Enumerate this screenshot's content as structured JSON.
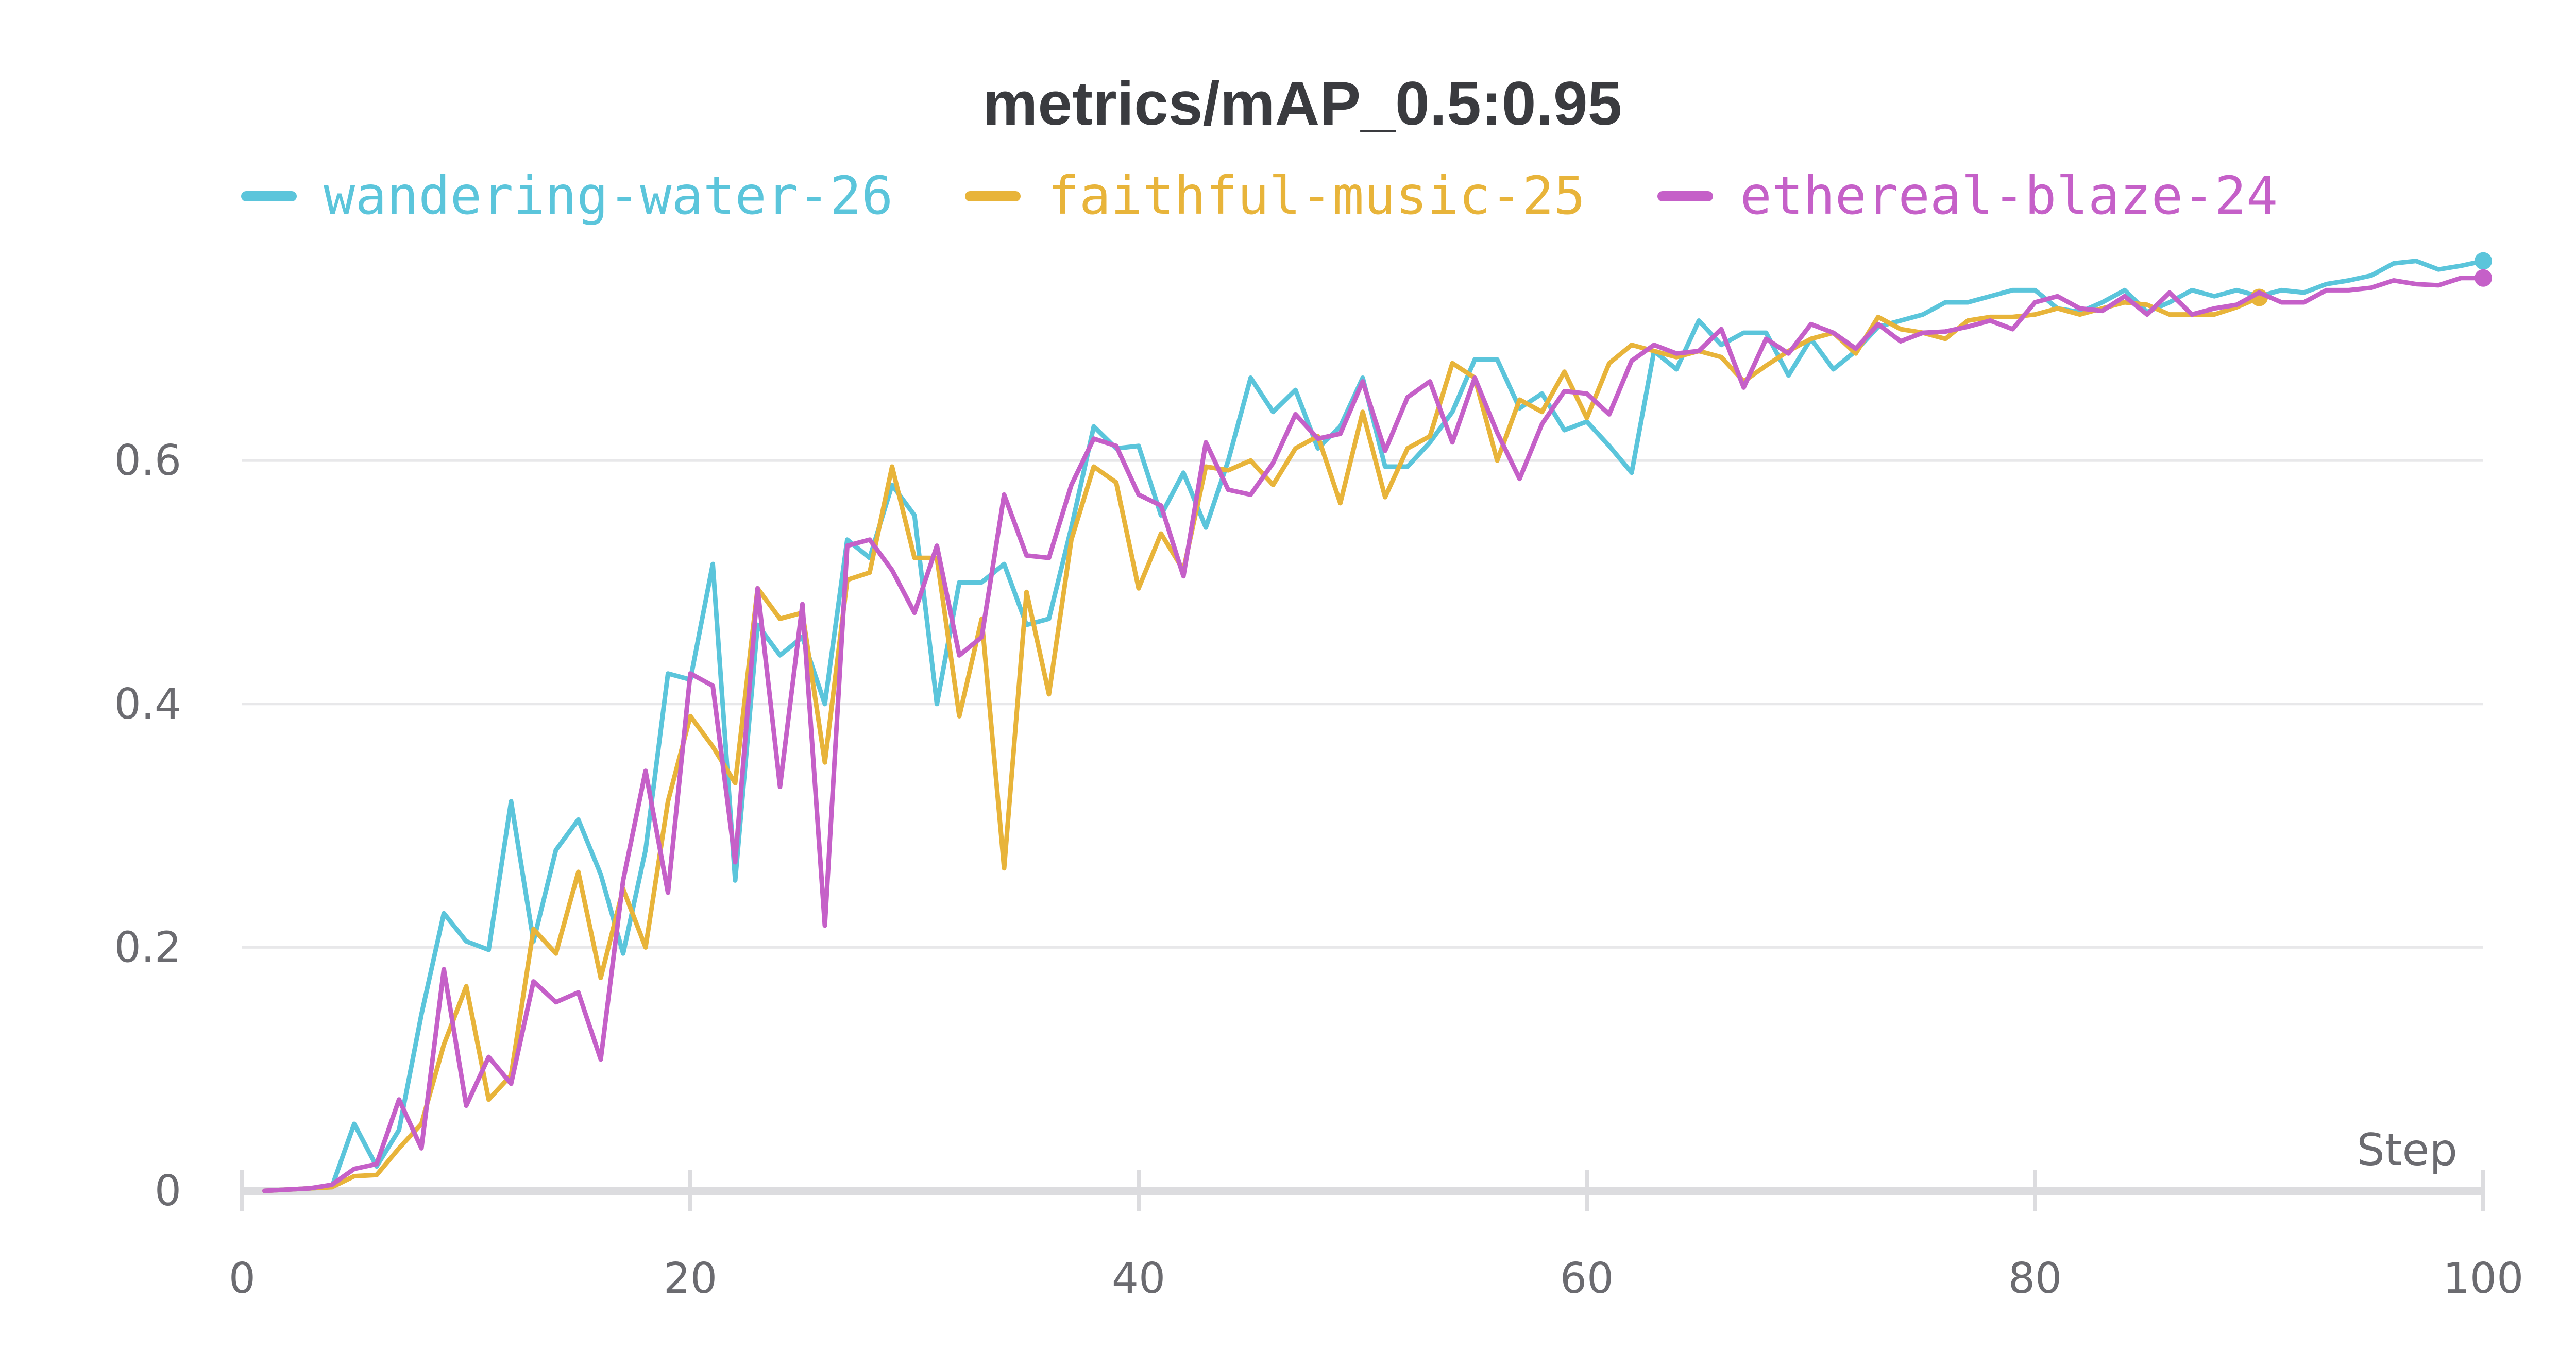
{
  "chart_data": {
    "type": "line",
    "title": "metrics/mAP_0.5:0.95",
    "xlabel": "Step",
    "ylabel": "",
    "xlim": [
      0,
      100
    ],
    "ylim": [
      0,
      0.8
    ],
    "xticks": [
      0,
      20,
      40,
      60,
      80,
      100
    ],
    "yticks": [
      0,
      0.2,
      0.4,
      0.6
    ],
    "ytick_labels": [
      "0",
      "0.2",
      "0.4",
      "0.6"
    ],
    "grid": true,
    "legend_position": "top",
    "series": [
      {
        "name": "wandering-water-26",
        "color": "#5bc5db",
        "x": [
          1,
          2,
          3,
          4,
          5,
          6,
          7,
          8,
          9,
          10,
          11,
          12,
          13,
          14,
          15,
          16,
          17,
          18,
          19,
          20,
          21,
          22,
          23,
          24,
          25,
          26,
          27,
          28,
          29,
          30,
          31,
          32,
          33,
          34,
          35,
          36,
          37,
          38,
          39,
          40,
          41,
          42,
          43,
          44,
          45,
          46,
          47,
          48,
          49,
          50,
          51,
          52,
          53,
          54,
          55,
          56,
          57,
          58,
          59,
          60,
          61,
          62,
          63,
          64,
          65,
          66,
          67,
          68,
          69,
          70,
          71,
          72,
          73,
          74,
          75,
          76,
          77,
          78,
          79,
          80,
          81,
          82,
          83,
          84,
          85,
          86,
          87,
          88,
          89,
          90,
          91,
          92,
          93,
          94,
          95,
          96,
          97,
          98,
          99,
          100
        ],
        "y": [
          0.0,
          0.001,
          0.002,
          0.003,
          0.055,
          0.02,
          0.05,
          0.145,
          0.228,
          0.205,
          0.198,
          0.32,
          0.205,
          0.28,
          0.305,
          0.26,
          0.195,
          0.28,
          0.425,
          0.42,
          0.515,
          0.255,
          0.465,
          0.44,
          0.455,
          0.4,
          0.535,
          0.52,
          0.58,
          0.555,
          0.4,
          0.5,
          0.5,
          0.515,
          0.465,
          0.47,
          0.545,
          0.628,
          0.61,
          0.612,
          0.555,
          0.59,
          0.545,
          0.6,
          0.668,
          0.64,
          0.658,
          0.61,
          0.628,
          0.668,
          0.595,
          0.595,
          0.615,
          0.64,
          0.683,
          0.683,
          0.643,
          0.655,
          0.625,
          0.632,
          0.612,
          0.59,
          0.69,
          0.675,
          0.715,
          0.695,
          0.705,
          0.705,
          0.67,
          0.7,
          0.675,
          0.69,
          0.71,
          0.715,
          0.72,
          0.73,
          0.73,
          0.735,
          0.74,
          0.74,
          0.725,
          0.722,
          0.73,
          0.74,
          0.722,
          0.73,
          0.74,
          0.735,
          0.74,
          0.735,
          0.74,
          0.738,
          0.745,
          0.748,
          0.752,
          0.762,
          0.764,
          0.757,
          0.76,
          0.764
        ]
      },
      {
        "name": "faithful-music-25",
        "color": "#e8b43a",
        "x": [
          1,
          2,
          3,
          4,
          5,
          6,
          7,
          8,
          9,
          10,
          11,
          12,
          13,
          14,
          15,
          16,
          17,
          18,
          19,
          20,
          21,
          22,
          23,
          24,
          25,
          26,
          27,
          28,
          29,
          30,
          31,
          32,
          33,
          34,
          35,
          36,
          37,
          38,
          39,
          40,
          41,
          42,
          43,
          44,
          45,
          46,
          47,
          48,
          49,
          50,
          51,
          52,
          53,
          54,
          55,
          56,
          57,
          58,
          59,
          60,
          61,
          62,
          63,
          64,
          65,
          66,
          67,
          68,
          69,
          70,
          71,
          72,
          73,
          74,
          75,
          76,
          77,
          78,
          79,
          80,
          81,
          82,
          83,
          84,
          85,
          86,
          87,
          88,
          89,
          90
        ],
        "y": [
          0.0,
          0.001,
          0.002,
          0.003,
          0.012,
          0.013,
          0.035,
          0.055,
          0.12,
          0.168,
          0.075,
          0.095,
          0.215,
          0.195,
          0.262,
          0.175,
          0.248,
          0.2,
          0.32,
          0.39,
          0.365,
          0.335,
          0.495,
          0.47,
          0.475,
          0.352,
          0.502,
          0.508,
          0.595,
          0.52,
          0.52,
          0.39,
          0.47,
          0.265,
          0.492,
          0.408,
          0.535,
          0.595,
          0.582,
          0.495,
          0.54,
          0.51,
          0.595,
          0.592,
          0.6,
          0.58,
          0.61,
          0.62,
          0.565,
          0.64,
          0.57,
          0.61,
          0.62,
          0.68,
          0.668,
          0.6,
          0.65,
          0.64,
          0.673,
          0.635,
          0.68,
          0.695,
          0.69,
          0.685,
          0.69,
          0.685,
          0.665,
          0.678,
          0.69,
          0.7,
          0.705,
          0.688,
          0.718,
          0.708,
          0.705,
          0.7,
          0.715,
          0.718,
          0.718,
          0.72,
          0.725,
          0.72,
          0.725,
          0.73,
          0.728,
          0.72,
          0.72,
          0.72,
          0.726,
          0.734
        ]
      },
      {
        "name": "ethereal-blaze-24",
        "color": "#c560c8",
        "x": [
          1,
          2,
          3,
          4,
          5,
          6,
          7,
          8,
          9,
          10,
          11,
          12,
          13,
          14,
          15,
          16,
          17,
          18,
          19,
          20,
          21,
          22,
          23,
          24,
          25,
          26,
          27,
          28,
          29,
          30,
          31,
          32,
          33,
          34,
          35,
          36,
          37,
          38,
          39,
          40,
          41,
          42,
          43,
          44,
          45,
          46,
          47,
          48,
          49,
          50,
          51,
          52,
          53,
          54,
          55,
          56,
          57,
          58,
          59,
          60,
          61,
          62,
          63,
          64,
          65,
          66,
          67,
          68,
          69,
          70,
          71,
          72,
          73,
          74,
          75,
          76,
          77,
          78,
          79,
          80,
          81,
          82,
          83,
          84,
          85,
          86,
          87,
          88,
          89,
          90,
          91,
          92,
          93,
          94,
          95,
          96,
          97,
          98,
          99,
          100
        ],
        "y": [
          0.0,
          0.001,
          0.002,
          0.005,
          0.018,
          0.022,
          0.075,
          0.035,
          0.182,
          0.07,
          0.11,
          0.088,
          0.172,
          0.155,
          0.163,
          0.108,
          0.255,
          0.345,
          0.245,
          0.425,
          0.415,
          0.27,
          0.495,
          0.332,
          0.482,
          0.218,
          0.53,
          0.535,
          0.51,
          0.475,
          0.53,
          0.44,
          0.455,
          0.572,
          0.522,
          0.52,
          0.58,
          0.618,
          0.612,
          0.572,
          0.563,
          0.505,
          0.615,
          0.576,
          0.572,
          0.598,
          0.638,
          0.618,
          0.622,
          0.665,
          0.608,
          0.652,
          0.665,
          0.615,
          0.668,
          0.623,
          0.585,
          0.63,
          0.657,
          0.655,
          0.638,
          0.682,
          0.695,
          0.688,
          0.69,
          0.708,
          0.66,
          0.7,
          0.688,
          0.712,
          0.705,
          0.692,
          0.712,
          0.698,
          0.705,
          0.706,
          0.71,
          0.715,
          0.708,
          0.73,
          0.735,
          0.725,
          0.723,
          0.735,
          0.72,
          0.738,
          0.72,
          0.725,
          0.728,
          0.738,
          0.73,
          0.73,
          0.74,
          0.74,
          0.742,
          0.748,
          0.745,
          0.744,
          0.75,
          0.75
        ]
      }
    ]
  }
}
